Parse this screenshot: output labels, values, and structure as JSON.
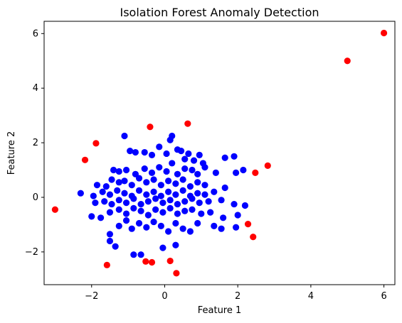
{
  "chart_data": {
    "type": "scatter",
    "title": "Isolation Forest Anomaly Detection",
    "xlabel": "Feature 1",
    "ylabel": "Feature 2",
    "xlim": [
      -3.3,
      6.3
    ],
    "ylim": [
      -3.2,
      6.45
    ],
    "x_ticks": [
      -2,
      0,
      2,
      4,
      6
    ],
    "y_ticks": [
      -2,
      0,
      2,
      4,
      6
    ],
    "grid": false,
    "colors": {
      "normal": "#0000ff",
      "anomaly": "#ff0000",
      "axis": "#000000"
    },
    "series": [
      {
        "color": "#0000ff",
        "points": [
          [
            -1.1,
            2.25
          ],
          [
            -0.95,
            1.7
          ],
          [
            -0.8,
            1.65
          ],
          [
            -0.55,
            1.65
          ],
          [
            -0.35,
            1.55
          ],
          [
            -0.15,
            1.85
          ],
          [
            0.05,
            1.6
          ],
          [
            0.15,
            2.1
          ],
          [
            0.2,
            2.25
          ],
          [
            0.35,
            1.75
          ],
          [
            0.45,
            1.7
          ],
          [
            0.55,
            1.4
          ],
          [
            0.65,
            1.6
          ],
          [
            0.8,
            1.35
          ],
          [
            0.95,
            1.55
          ],
          [
            1.05,
            1.25
          ],
          [
            1.65,
            1.45
          ],
          [
            1.9,
            1.5
          ],
          [
            -1.4,
            1.0
          ],
          [
            -1.25,
            0.95
          ],
          [
            -1.05,
            1.0
          ],
          [
            -0.8,
            0.85
          ],
          [
            -0.55,
            1.05
          ],
          [
            -0.35,
            0.9
          ],
          [
            -0.15,
            1.1
          ],
          [
            0.05,
            0.95
          ],
          [
            0.2,
            1.25
          ],
          [
            0.35,
            0.85
          ],
          [
            0.55,
            1.05
          ],
          [
            0.75,
            1.0
          ],
          [
            0.9,
            0.85
          ],
          [
            1.1,
            1.1
          ],
          [
            1.4,
            0.9
          ],
          [
            1.95,
            0.9
          ],
          [
            2.15,
            1.0
          ],
          [
            -1.85,
            0.45
          ],
          [
            -1.6,
            0.4
          ],
          [
            -1.45,
            0.65
          ],
          [
            -1.25,
            0.55
          ],
          [
            -1.1,
            0.6
          ],
          [
            -0.9,
            0.45
          ],
          [
            -0.7,
            0.7
          ],
          [
            -0.5,
            0.55
          ],
          [
            -0.3,
            0.65
          ],
          [
            -0.1,
            0.45
          ],
          [
            0.1,
            0.6
          ],
          [
            0.3,
            0.5
          ],
          [
            0.5,
            0.65
          ],
          [
            0.7,
            0.4
          ],
          [
            0.9,
            0.55
          ],
          [
            1.1,
            0.45
          ],
          [
            1.35,
            0.2
          ],
          [
            1.65,
            0.35
          ],
          [
            -2.3,
            0.15
          ],
          [
            -1.95,
            0.05
          ],
          [
            -1.7,
            0.2
          ],
          [
            -1.5,
            0.1
          ],
          [
            -1.3,
            0.25
          ],
          [
            -1.1,
            0.15
          ],
          [
            -0.9,
            0.05
          ],
          [
            -0.7,
            0.25
          ],
          [
            -0.5,
            0.1
          ],
          [
            -0.3,
            0.2
          ],
          [
            -0.1,
            0.05
          ],
          [
            0.1,
            0.2
          ],
          [
            0.3,
            0.1
          ],
          [
            0.5,
            0.25
          ],
          [
            0.7,
            0.05
          ],
          [
            0.9,
            0.15
          ],
          [
            1.1,
            0.1
          ],
          [
            -1.9,
            -0.2
          ],
          [
            -1.65,
            -0.15
          ],
          [
            -1.45,
            -0.25
          ],
          [
            -1.25,
            -0.1
          ],
          [
            -1.05,
            -0.2
          ],
          [
            -0.85,
            -0.05
          ],
          [
            -0.65,
            -0.25
          ],
          [
            -0.45,
            -0.15
          ],
          [
            -0.25,
            -0.05
          ],
          [
            -0.05,
            -0.2
          ],
          [
            0.15,
            -0.1
          ],
          [
            0.35,
            -0.25
          ],
          [
            0.55,
            -0.15
          ],
          [
            0.75,
            -0.05
          ],
          [
            0.95,
            -0.2
          ],
          [
            1.2,
            -0.15
          ],
          [
            1.55,
            -0.1
          ],
          [
            1.9,
            -0.25
          ],
          [
            2.2,
            -0.3
          ],
          [
            -2.0,
            -0.7
          ],
          [
            -1.75,
            -0.75
          ],
          [
            -1.5,
            -0.55
          ],
          [
            -1.25,
            -0.45
          ],
          [
            -1.05,
            -0.6
          ],
          [
            -0.85,
            -0.4
          ],
          [
            -0.65,
            -0.5
          ],
          [
            -0.45,
            -0.65
          ],
          [
            -0.25,
            -0.45
          ],
          [
            -0.05,
            -0.55
          ],
          [
            0.15,
            -0.4
          ],
          [
            0.35,
            -0.6
          ],
          [
            0.55,
            -0.5
          ],
          [
            0.75,
            -0.45
          ],
          [
            1.0,
            -0.6
          ],
          [
            1.25,
            -0.55
          ],
          [
            1.6,
            -0.75
          ],
          [
            2.0,
            -0.65
          ],
          [
            -1.5,
            -1.35
          ],
          [
            -1.25,
            -1.05
          ],
          [
            -1.05,
            -0.85
          ],
          [
            -0.9,
            -1.15
          ],
          [
            -0.7,
            -0.95
          ],
          [
            -0.5,
            -1.1
          ],
          [
            -0.3,
            -0.9
          ],
          [
            -0.1,
            -1.05
          ],
          [
            0.1,
            -1.25
          ],
          [
            0.3,
            -0.95
          ],
          [
            0.5,
            -1.15
          ],
          [
            0.7,
            -1.25
          ],
          [
            0.9,
            -0.95
          ],
          [
            1.35,
            -1.05
          ],
          [
            1.55,
            -1.15
          ],
          [
            1.95,
            -1.1
          ],
          [
            -1.5,
            -1.6
          ],
          [
            -1.35,
            -1.8
          ],
          [
            -0.85,
            -2.1
          ],
          [
            -0.65,
            -2.1
          ],
          [
            -0.05,
            -1.85
          ],
          [
            0.3,
            -1.75
          ]
        ]
      },
      {
        "color": "#ff0000",
        "points": [
          [
            6.0,
            6.02
          ],
          [
            5.0,
            5.0
          ],
          [
            -0.4,
            2.58
          ],
          [
            0.63,
            2.7
          ],
          [
            -1.88,
            1.98
          ],
          [
            -2.18,
            1.37
          ],
          [
            2.82,
            1.16
          ],
          [
            2.48,
            0.9
          ],
          [
            -3.0,
            -0.45
          ],
          [
            2.28,
            -0.98
          ],
          [
            2.42,
            -1.45
          ],
          [
            -1.58,
            -2.48
          ],
          [
            -0.52,
            -2.35
          ],
          [
            -0.35,
            -2.38
          ],
          [
            0.15,
            -2.33
          ],
          [
            0.32,
            -2.78
          ]
        ]
      }
    ]
  }
}
